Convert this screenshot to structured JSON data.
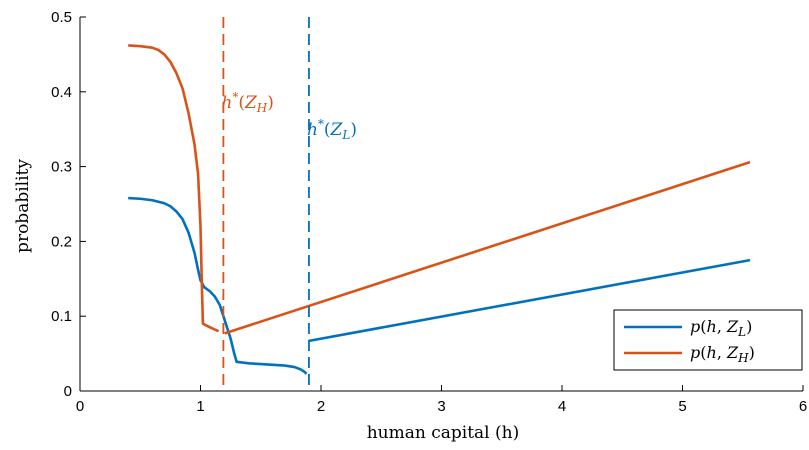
{
  "chart_data": {
    "type": "line",
    "title": "",
    "xlabel": "human capital (h)",
    "ylabel": "probability",
    "xlim": [
      0,
      6
    ],
    "ylim": [
      0,
      0.5
    ],
    "xticks": [
      0,
      1,
      2,
      3,
      4,
      5,
      6
    ],
    "yticks": [
      0,
      0.1,
      0.2,
      0.3,
      0.4,
      0.5
    ],
    "xtick_labels": [
      "0",
      "1",
      "2",
      "3",
      "4",
      "5",
      "6"
    ],
    "ytick_labels": [
      "0",
      "0.1",
      "0.2",
      "0.3",
      "0.4",
      "0.5"
    ],
    "grid": false,
    "legend_position": "bottom-right",
    "series": [
      {
        "name": "p(h, Z_L)",
        "color": "#0072BD",
        "segments": [
          [
            [
              0.4,
              0.258
            ],
            [
              0.5,
              0.257
            ],
            [
              0.6,
              0.255
            ],
            [
              0.7,
              0.251
            ],
            [
              0.75,
              0.247
            ],
            [
              0.8,
              0.24
            ],
            [
              0.85,
              0.23
            ],
            [
              0.9,
              0.212
            ],
            [
              0.95,
              0.185
            ],
            [
              0.98,
              0.162
            ],
            [
              1.0,
              0.148
            ],
            [
              1.03,
              0.139
            ],
            [
              1.08,
              0.133
            ],
            [
              1.12,
              0.126
            ],
            [
              1.16,
              0.115
            ],
            [
              1.2,
              0.095
            ],
            [
              1.25,
              0.07
            ],
            [
              1.28,
              0.05
            ],
            [
              1.3,
              0.039
            ],
            [
              1.4,
              0.037
            ],
            [
              1.5,
              0.036
            ],
            [
              1.6,
              0.035
            ],
            [
              1.7,
              0.034
            ],
            [
              1.78,
              0.032
            ],
            [
              1.83,
              0.029
            ],
            [
              1.86,
              0.026
            ],
            [
              1.88,
              0.023
            ]
          ],
          [
            [
              1.9,
              0.067
            ],
            [
              5.56,
              0.175
            ]
          ]
        ]
      },
      {
        "name": "p(h, Z_H)",
        "color": "#D95319",
        "segments": [
          [
            [
              0.4,
              0.462
            ],
            [
              0.5,
              0.461
            ],
            [
              0.6,
              0.459
            ],
            [
              0.65,
              0.456
            ],
            [
              0.7,
              0.45
            ],
            [
              0.75,
              0.44
            ],
            [
              0.8,
              0.425
            ],
            [
              0.85,
              0.405
            ],
            [
              0.9,
              0.372
            ],
            [
              0.95,
              0.33
            ],
            [
              0.98,
              0.29
            ],
            [
              1.0,
              0.22
            ],
            [
              1.01,
              0.15
            ],
            [
              1.02,
              0.09
            ],
            [
              1.08,
              0.085
            ],
            [
              1.15,
              0.08
            ]
          ],
          [
            [
              1.2,
              0.077
            ],
            [
              5.56,
              0.306
            ]
          ]
        ]
      }
    ],
    "vlines": [
      {
        "x": 1.19,
        "color": "#D95319",
        "style": "dashed",
        "label_base": "h",
        "label_sup": "*",
        "label_sub": "H"
      },
      {
        "x": 1.9,
        "color": "#0072BD",
        "style": "dashed",
        "label_base": "h",
        "label_sup": "*",
        "label_sub": "L"
      }
    ],
    "legend": [
      {
        "base": "p",
        "sub": "L"
      },
      {
        "base": "p",
        "sub": "H"
      }
    ]
  },
  "text": {
    "var_z": "Z",
    "var_h": "h"
  }
}
